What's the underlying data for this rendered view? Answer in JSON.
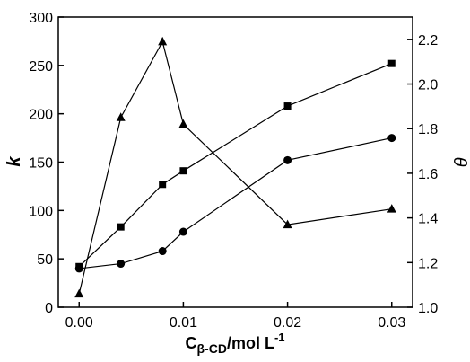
{
  "chart_data": {
    "type": "line",
    "xlabel": [
      "C",
      "β-CD",
      "/mol L",
      "-1"
    ],
    "ylabel": "k",
    "y2label": "θ",
    "x": [
      0,
      0.004,
      0.008,
      0.01,
      0.02,
      0.03
    ],
    "series": [
      {
        "color": "#000000",
        "marker": "square",
        "values": [
          42,
          83,
          127,
          141,
          208,
          252
        ]
      },
      {
        "color": "#000000",
        "marker": "circle",
        "values": [
          40,
          45,
          58,
          78,
          152,
          175
        ]
      },
      {
        "color": "#000000",
        "marker": "triangle",
        "axis": "y2",
        "values": [
          1.06,
          1.85,
          2.19,
          1.82,
          1.37,
          1.44
        ]
      }
    ],
    "xlim": [
      -0.002,
      0.032
    ],
    "xticks": [
      {
        "value": 0,
        "label": "0.00"
      },
      {
        "value": 0.01,
        "label": "0.01"
      },
      {
        "value": 0.02,
        "label": "0.02"
      },
      {
        "value": 0.03,
        "label": "0.03"
      }
    ],
    "ylim": [
      0,
      300
    ],
    "yticks": [
      0,
      50,
      100,
      150,
      200,
      250,
      300
    ],
    "y2lim": [
      1.0,
      2.3
    ],
    "y2ticks": [
      {
        "value": 1.0,
        "label": "1.0"
      },
      1.2,
      1.4,
      1.6,
      1.8,
      {
        "value": 2.0,
        "label": "2.0"
      },
      2.2
    ]
  }
}
